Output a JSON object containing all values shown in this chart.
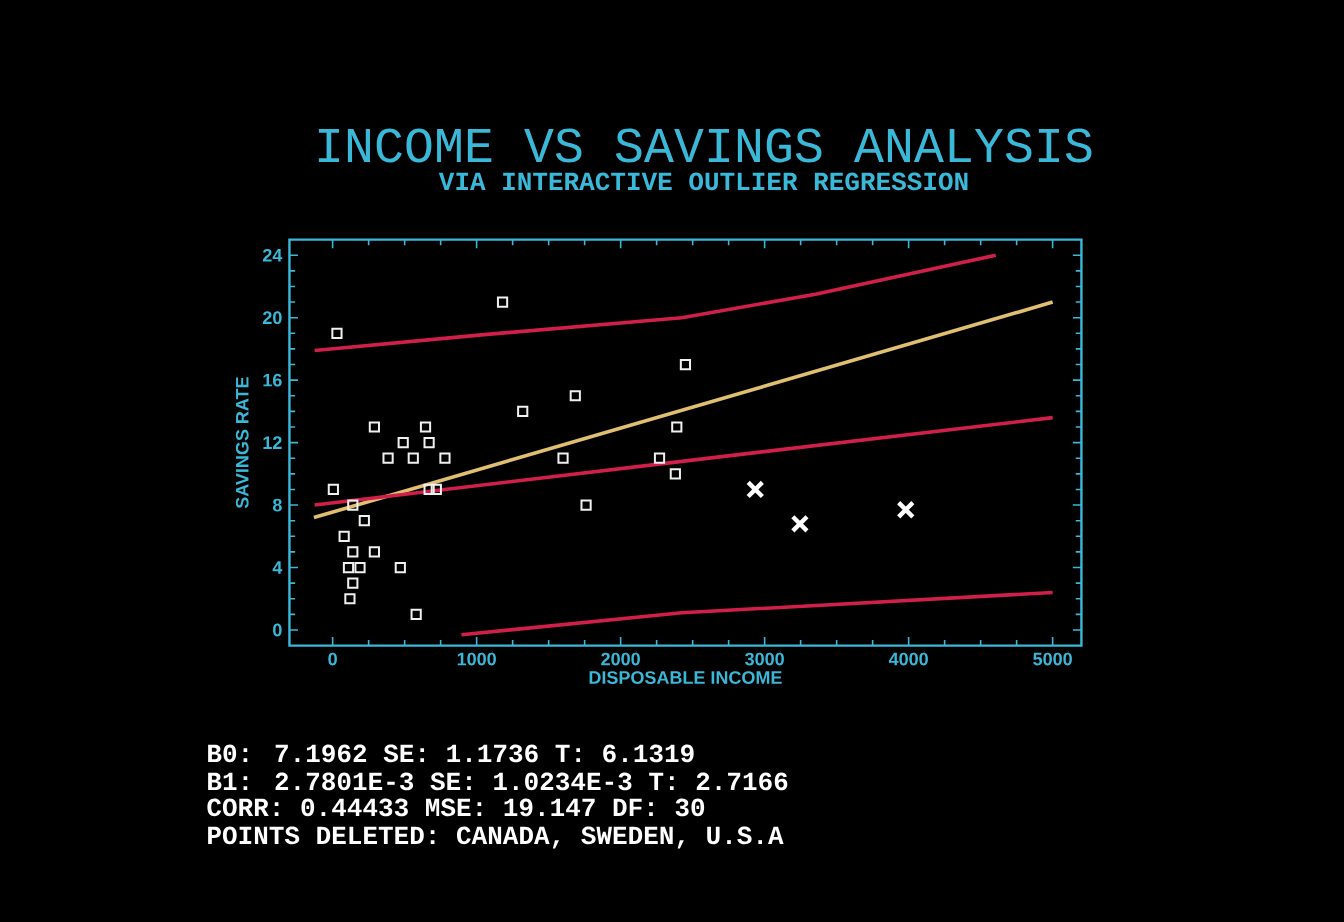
{
  "chart_data": {
    "type": "scatter",
    "title": "INCOME VS SAVINGS ANALYSIS",
    "subtitle": "VIA INTERACTIVE OUTLIER REGRESSION",
    "xlabel": "DISPOSABLE INCOME",
    "ylabel": "SAVINGS RATE",
    "xlim": [
      -300,
      5200
    ],
    "ylim": [
      -1,
      25
    ],
    "xticks": [
      0,
      1000,
      2000,
      3000,
      4000,
      5000
    ],
    "yticks": [
      0,
      4,
      8,
      12,
      16,
      20,
      24
    ],
    "grid": false,
    "series": [
      {
        "marker": "square",
        "color": "#f0f0f0",
        "x": [
          30,
          1180,
          5,
          140,
          220,
          80,
          140,
          290,
          110,
          190,
          140,
          120,
          470,
          580,
          290,
          385,
          490,
          560,
          645,
          670,
          780,
          670,
          720,
          1320,
          1685,
          1600,
          1760,
          2270,
          2390,
          2450,
          2380
        ],
        "values": [
          19,
          21,
          9,
          8,
          7,
          6,
          5,
          5,
          4,
          4,
          3,
          2,
          4,
          1,
          13,
          11,
          12,
          11,
          13,
          12,
          11,
          9,
          9,
          14,
          15,
          11,
          8,
          11,
          13,
          17,
          10
        ]
      },
      {
        "marker": "cross",
        "color": "#ffffff",
        "x": [
          2935,
          3245,
          3980
        ],
        "values": [
          9,
          6.8,
          7.7
        ]
      },
      {
        "type": "line",
        "color": "#e0c070",
        "x": [
          -130,
          5000
        ],
        "values": [
          7.2,
          21
        ]
      },
      {
        "type": "line",
        "color": "#d0204a",
        "x": [
          -125,
          1034,
          2425,
          3353,
          4605
        ],
        "values": [
          17.9,
          18.9,
          20,
          21.5,
          24
        ]
      },
      {
        "type": "line",
        "color": "#d0204a",
        "x": [
          -125,
          2425,
          5000
        ],
        "values": [
          8,
          10.8,
          13.6
        ]
      },
      {
        "type": "line",
        "color": "#d0204a",
        "x": [
          895,
          2425,
          5000
        ],
        "values": [
          -0.3,
          1.1,
          2.4
        ]
      }
    ],
    "annotations": [
      "B0:  7.1962     SE:  1.1736      T:  6.1319",
      "B1:  2.7801E-3  SE:  1.0234E-3  T:  2.7166",
      "CORR:  0.44433   MSE:  19.147   DF:  30",
      "POINTS DELETED:  CANADA,  SWEDEN,  U.S.A"
    ]
  }
}
